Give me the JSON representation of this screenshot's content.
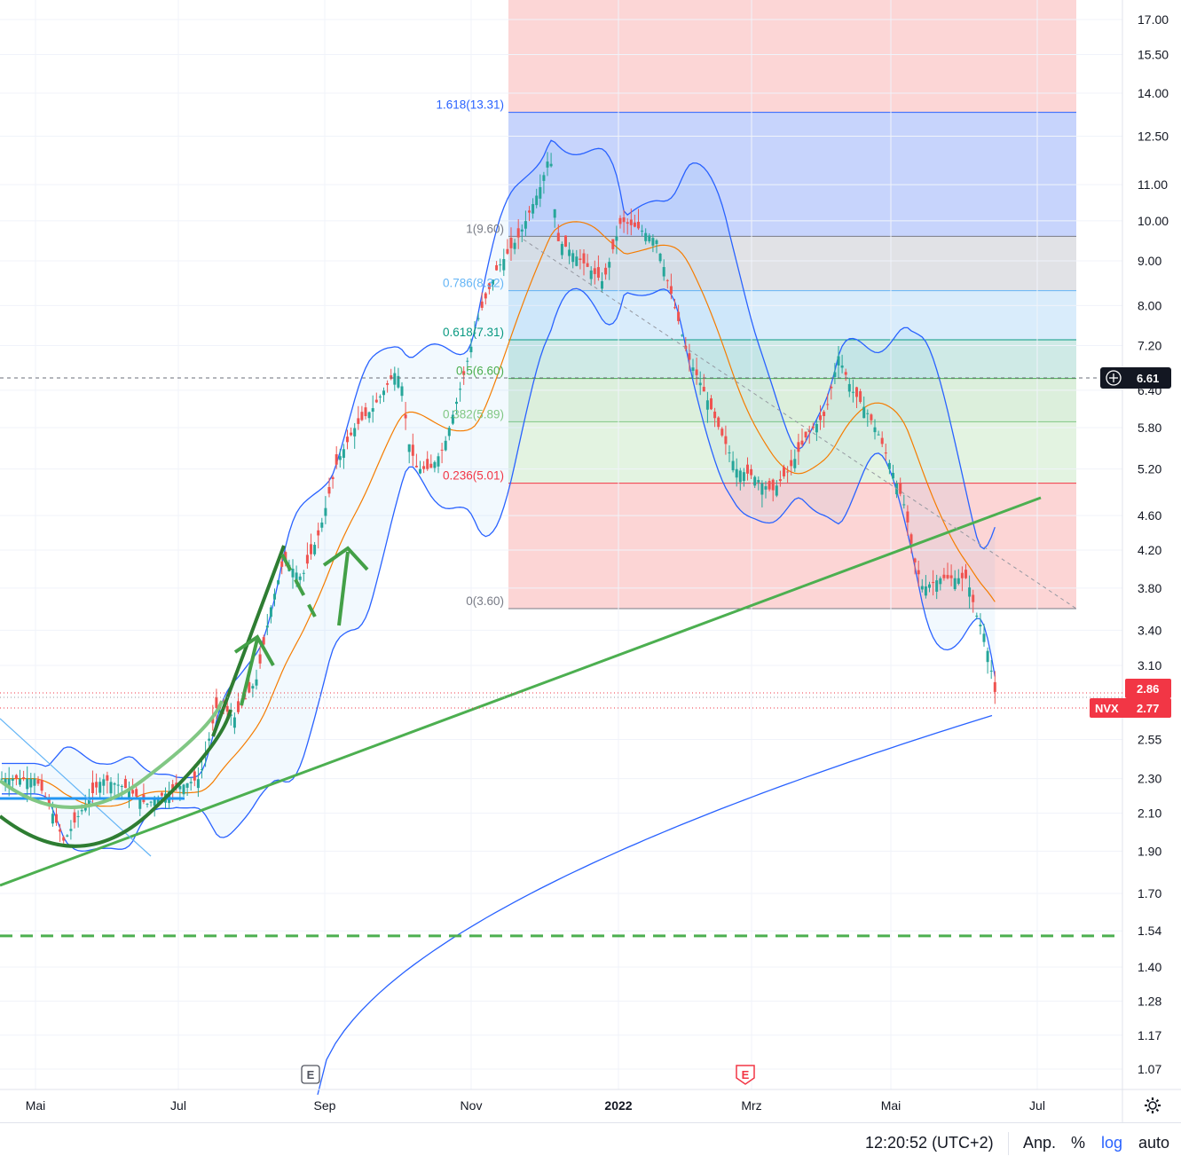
{
  "chart_data": {
    "type": "candlestick",
    "symbol": "NVX",
    "scale": "log",
    "y_ticks": [
      17.0,
      15.5,
      14.0,
      12.5,
      11.0,
      10.0,
      9.0,
      8.0,
      7.2,
      6.4,
      5.8,
      5.2,
      4.6,
      4.2,
      3.8,
      3.4,
      3.1,
      2.55,
      2.3,
      2.1,
      1.9,
      1.7,
      1.54,
      1.4,
      1.28,
      1.17,
      1.07
    ],
    "y_tick_labels": [
      "17.00",
      "15.50",
      "14.00",
      "12.50",
      "11.00",
      "10.00",
      "9.00",
      "8.00",
      "7.20",
      "6.40",
      "5.80",
      "5.20",
      "4.60",
      "4.20",
      "3.80",
      "3.40",
      "3.10",
      "2.55",
      "2.30",
      "2.10",
      "1.90",
      "1.70",
      "1.54",
      "1.40",
      "1.28",
      "1.17",
      "1.07"
    ],
    "x_ticks": [
      {
        "label": "Mai",
        "bold": false
      },
      {
        "label": "Jul",
        "bold": false
      },
      {
        "label": "Sep",
        "bold": false
      },
      {
        "label": "Nov",
        "bold": false
      },
      {
        "label": "2022",
        "bold": true
      },
      {
        "label": "Mrz",
        "bold": false
      },
      {
        "label": "Mai",
        "bold": false
      },
      {
        "label": "Jul",
        "bold": false
      }
    ],
    "fib_levels": [
      {
        "ratio": 1.618,
        "price": 13.31,
        "label": "1.618(13.31)",
        "color": "#2962ff"
      },
      {
        "ratio": 1,
        "price": 9.6,
        "label": "1(9.60)",
        "color": "#787b86"
      },
      {
        "ratio": 0.786,
        "price": 8.32,
        "label": "0.786(8.32)",
        "color": "#64b5f6"
      },
      {
        "ratio": 0.618,
        "price": 7.31,
        "label": "0.618(7.31)",
        "color": "#089981"
      },
      {
        "ratio": 0.5,
        "price": 6.6,
        "label": "0.5(6.60)",
        "color": "#4caf50"
      },
      {
        "ratio": 0.382,
        "price": 5.89,
        "label": "0.382(5.89)",
        "color": "#81c784"
      },
      {
        "ratio": 0.236,
        "price": 5.01,
        "label": "0.236(5.01)",
        "color": "#f23645"
      },
      {
        "ratio": 0,
        "price": 3.6,
        "label": "0(3.60)",
        "color": "#787b86"
      }
    ],
    "crosshair_price": "6.61",
    "price_labels": [
      {
        "text": "2.86",
        "price": 2.86,
        "color": "#f23645"
      },
      {
        "text": "2.77",
        "price": 2.77,
        "color": "#f23645"
      }
    ],
    "last_price": 2.77,
    "earnings_markers": [
      "E",
      "E"
    ],
    "horizontal_support": 1.52,
    "colors": {
      "up": "#26a69a",
      "down": "#ef5350",
      "bollinger": "#2962ff",
      "ma_fast": "#f57c00",
      "trend": "#4caf50"
    }
  },
  "status_bar": {
    "time": "12:20:52 (UTC+2)",
    "adjust": "Anp.",
    "percent": "%",
    "log": "log",
    "auto": "auto"
  },
  "icons": {
    "settings": "gear-icon",
    "crosshair": "crosshair-plus-icon"
  }
}
